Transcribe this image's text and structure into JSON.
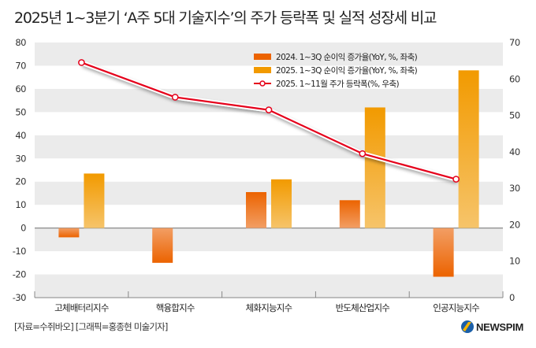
{
  "title": "2025년 1~3분기 ‘A주 5대 기술지수’의 주가 등락폭 및 실적 성장세 비교",
  "source": "[자료=수쥐바오] [그래픽=홍종현 미술기자]",
  "brand": {
    "name": "NEWSPIM",
    "icon": "newspim-logo-icon"
  },
  "chart_data": {
    "type": "bar",
    "title": "2025년 1~3분기 ‘A주 5대 기술지수’의 주가 등락폭 및 실적 성장세 비교",
    "categories": [
      "고체배터리지수",
      "핵융합지수",
      "체화지능지수",
      "반도체산업지수",
      "인공지능지수"
    ],
    "series": [
      {
        "name": "2024. 1~3Q 순이익 증가율(YoY, %, 좌축)",
        "kind": "bar",
        "axis": "left",
        "color": "#EC6300",
        "color_light": "#F29E64",
        "values": [
          -4,
          -15,
          15.5,
          12,
          -21
        ]
      },
      {
        "name": "2025. 1~3Q 순이익 증가율(YoY, %, 좌축)",
        "kind": "bar",
        "axis": "left",
        "color": "#F29A00",
        "color_light": "#F6C46A",
        "values": [
          23.5,
          null,
          21,
          52,
          68
        ]
      },
      {
        "name": "2025. 1~11월 주가 등락폭(%, 우축)",
        "kind": "line",
        "axis": "right",
        "color": "#E5001B",
        "values": [
          64.5,
          55,
          51.5,
          39.5,
          32.5
        ]
      }
    ],
    "left_axis": {
      "ylim": [
        -30,
        80
      ],
      "ticks": [
        "80",
        "70",
        "60",
        "50",
        "40",
        "30",
        "20",
        "10",
        "0",
        "-10",
        "-20",
        "-30"
      ]
    },
    "right_axis": {
      "ylim": [
        0,
        70
      ],
      "ticks": [
        "70",
        "60",
        "50",
        "40",
        "30",
        "20",
        "10",
        "0"
      ]
    },
    "xlabel": "",
    "ylabel": "",
    "grid": "alternating horizontal bands",
    "legend": "top-center"
  }
}
